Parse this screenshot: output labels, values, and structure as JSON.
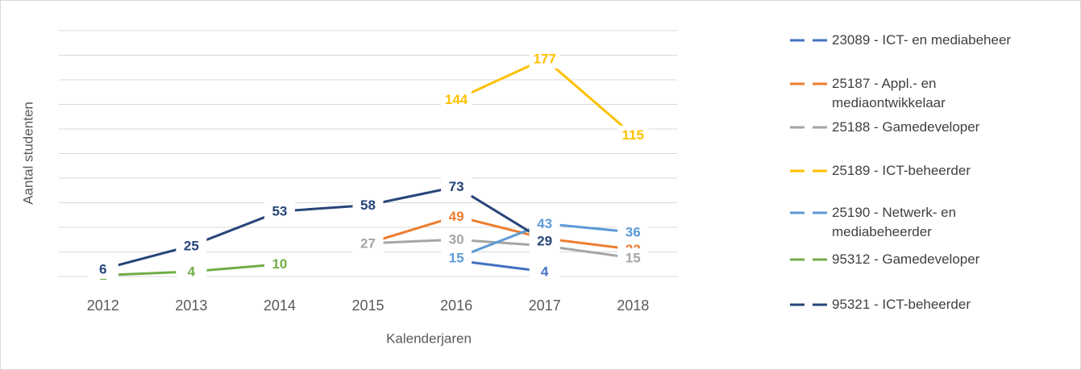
{
  "chart_data": {
    "type": "line",
    "x_label": "Kalenderjaren",
    "y_label": "Aantal studenten",
    "categories": [
      "2012",
      "2013",
      "2014",
      "2015",
      "2016",
      "2017",
      "2018"
    ],
    "ylim": [
      0,
      200
    ],
    "yticks": [
      0,
      20,
      40,
      60,
      80,
      100,
      120,
      140,
      160,
      180,
      200
    ],
    "grid": true,
    "legend": "right",
    "series": [
      {
        "name": "23089 - ICT- en mediabeheer",
        "color": "#4472c4",
        "values": [
          null,
          null,
          null,
          null,
          13,
          4,
          null
        ]
      },
      {
        "name": "25187 - Appl.- en mediaontwikkelaar",
        "color": "#ed7d31",
        "values": [
          null,
          null,
          null,
          27,
          49,
          31,
          22
        ]
      },
      {
        "name": "25188 - Gamedeveloper",
        "color": "#a5a5a5",
        "values": [
          null,
          null,
          null,
          27,
          30,
          25,
          15
        ]
      },
      {
        "name": "25189 - ICT-beheerder",
        "color": "#ffc000",
        "values": [
          null,
          null,
          null,
          null,
          144,
          177,
          115
        ]
      },
      {
        "name": "25190 - Netwerk- en mediabeheerder",
        "color": "#5b9bd5",
        "values": [
          null,
          null,
          null,
          null,
          15,
          43,
          36
        ]
      },
      {
        "name": "95312 - Gamedeveloper",
        "color": "#70ad47",
        "values": [
          1,
          4,
          10,
          null,
          null,
          null,
          null
        ]
      },
      {
        "name": "95321 - ICT-beheerder",
        "color": "#264478",
        "values": [
          6,
          25,
          53,
          58,
          73,
          29,
          null
        ]
      }
    ]
  }
}
